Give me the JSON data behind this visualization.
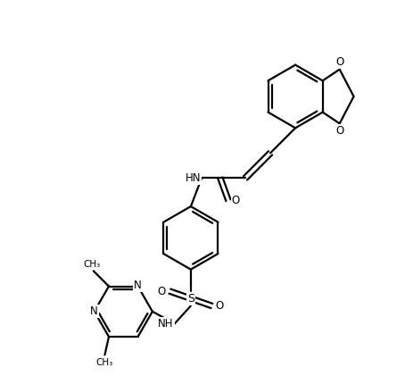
{
  "bg_color": "#ffffff",
  "bond_color": "#000000",
  "text_color": "#000000",
  "line_width": 1.6,
  "figsize": [
    4.54,
    4.21
  ],
  "dpi": 100,
  "xlim": [
    0,
    10
  ],
  "ylim": [
    0,
    9.27
  ]
}
